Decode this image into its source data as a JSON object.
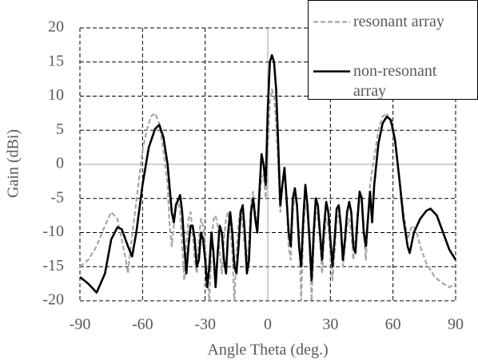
{
  "chart_data": {
    "type": "line",
    "xlabel": "Angle Theta (deg.)",
    "ylabel": "Gain (dBi)",
    "xlim": [
      -90,
      90
    ],
    "xticks": [
      -90,
      -60,
      -30,
      0,
      30,
      60,
      90
    ],
    "ylim": [
      -20,
      20
    ],
    "yticks": [
      -20,
      -15,
      -10,
      -5,
      0,
      5,
      10,
      15,
      20
    ],
    "grid": true,
    "legend": "upper right",
    "series": [
      {
        "name": "resonant array",
        "color": "#a6a6a6",
        "dashed": true,
        "x": [
          -90,
          -86,
          -82,
          -78,
          -75,
          -72,
          -70,
          -68,
          -67,
          -66,
          -64,
          -62,
          -60,
          -58,
          -56,
          -54,
          -52,
          -50,
          -48,
          -47,
          -46,
          -45,
          -44,
          -43,
          -42,
          -41,
          -40,
          -39,
          -38,
          -37,
          -36,
          -35,
          -34,
          -33,
          -32,
          -31,
          -30,
          -29,
          -28,
          -27,
          -26,
          -25,
          -24,
          -23,
          -22,
          -21,
          -20,
          -19,
          -18,
          -17,
          -16,
          -15,
          -14,
          -13,
          -12,
          -11,
          -10,
          -9,
          -8,
          -7,
          -6,
          -5,
          -4,
          -3,
          -2,
          -1,
          0,
          1,
          2,
          3,
          4,
          5,
          6,
          7,
          8,
          9,
          10,
          11,
          12,
          13,
          14,
          15,
          16,
          17,
          18,
          19,
          20,
          21,
          22,
          23,
          24,
          25,
          26,
          27,
          28,
          29,
          30,
          31,
          32,
          33,
          34,
          35,
          36,
          37,
          38,
          39,
          40,
          41,
          42,
          43,
          44,
          45,
          46,
          47,
          48,
          49,
          51,
          53,
          55,
          57,
          59,
          61,
          63,
          65,
          67,
          69,
          71,
          73,
          76,
          80,
          84,
          87,
          90
        ],
        "values": [
          -15,
          -14,
          -12,
          -9,
          -7,
          -8,
          -11,
          -14,
          -16,
          -13,
          -8,
          -3,
          2,
          5,
          7,
          7.5,
          6,
          2,
          -3,
          -9,
          -12,
          -9,
          -5.5,
          -5,
          -7,
          -12,
          -17,
          -12,
          -8,
          -7,
          -10,
          -14,
          -16,
          -11,
          -8,
          -9,
          -12,
          -16,
          -20,
          -12,
          -8,
          -7.5,
          -9,
          -13,
          -16,
          -11,
          -8,
          -7,
          -9,
          -13,
          -20,
          -13,
          -8.5,
          -6.5,
          -9,
          -12,
          -16,
          -11,
          -5.5,
          -4,
          -7,
          -9,
          -5,
          -2,
          -1.5,
          -5,
          2,
          9,
          11,
          10,
          6,
          0,
          -7,
          -3,
          -1.5,
          -5,
          -12,
          -14,
          -7,
          -4.5,
          -6,
          -10,
          -20,
          -10,
          -6,
          -7,
          -12,
          -20,
          -12,
          -7,
          -7.5,
          -11,
          -16,
          -11,
          -8,
          -9,
          -13,
          -17,
          -13,
          -8,
          -7.5,
          -10,
          -15,
          -12,
          -9,
          -8,
          -10,
          -14,
          -11,
          -7,
          -4,
          -4.5,
          -10,
          -14,
          -8,
          -3,
          1,
          5,
          7,
          7.5,
          6,
          3,
          -2,
          -7,
          -11,
          -9,
          -9.5,
          -12,
          -14.5,
          -16.5,
          -17.5,
          -18,
          -17.5
        ]
      },
      {
        "name": "non-resonant array",
        "color": "#000000",
        "dashed": false,
        "x": [
          -90,
          -86,
          -82,
          -78,
          -75,
          -72,
          -70,
          -67,
          -65,
          -63,
          -60,
          -57,
          -54,
          -52,
          -50,
          -48,
          -46,
          -45,
          -44,
          -42,
          -41,
          -40,
          -39,
          -38,
          -37,
          -36,
          -35,
          -34,
          -33,
          -32,
          -31,
          -30,
          -29,
          -28,
          -27,
          -26,
          -25,
          -24,
          -23,
          -22,
          -21,
          -20,
          -19,
          -18,
          -17,
          -16,
          -15,
          -14,
          -13,
          -12,
          -11,
          -10,
          -9,
          -8,
          -7,
          -6,
          -5,
          -4,
          -3,
          -2,
          -1,
          0,
          1,
          2,
          3,
          4,
          5,
          6,
          7,
          8,
          9,
          10,
          11,
          12,
          13,
          14,
          15,
          16,
          17,
          18,
          19,
          20,
          21,
          22,
          23,
          24,
          25,
          26,
          27,
          28,
          29,
          30,
          31,
          32,
          33,
          34,
          35,
          36,
          37,
          38,
          39,
          40,
          41,
          42,
          43,
          44,
          45,
          46,
          47,
          48,
          49,
          50,
          51,
          53,
          55,
          57,
          59,
          61,
          63,
          65,
          67,
          68,
          70,
          73,
          76,
          78,
          81,
          84,
          87,
          90
        ],
        "values": [
          -16.5,
          -17.5,
          -18.8,
          -16,
          -11,
          -9.2,
          -9.5,
          -12,
          -13.5,
          -10,
          -3,
          2.5,
          5.2,
          5.8,
          4,
          0,
          -7,
          -8.5,
          -6,
          -4.5,
          -7,
          -12,
          -16,
          -12,
          -9,
          -9,
          -11,
          -15,
          -14,
          -10,
          -11,
          -14,
          -18,
          -15,
          -10,
          -13,
          -18,
          -13,
          -9,
          -10,
          -14,
          -16,
          -10,
          -7,
          -10,
          -15,
          -16,
          -12,
          -7,
          -6,
          -10,
          -16,
          -14,
          -7,
          -5,
          -8,
          -10,
          -4,
          1.5,
          0,
          -3,
          8,
          15,
          16,
          15,
          11,
          3,
          -6,
          -3,
          -0.5,
          -5,
          -10,
          -12,
          -5,
          -3.5,
          -6,
          -12,
          -15,
          -8,
          -3,
          -6,
          -11,
          -17,
          -10,
          -5,
          -6,
          -10,
          -14,
          -9,
          -5.5,
          -7,
          -11,
          -15,
          -11,
          -6.5,
          -6,
          -9,
          -14,
          -11,
          -7,
          -5.5,
          -7,
          -12,
          -13,
          -8,
          -4,
          -5,
          -10,
          -12,
          -8,
          -4,
          -8.5,
          -3,
          3,
          6,
          7,
          6.5,
          3.5,
          -2,
          -8,
          -12,
          -13,
          -10,
          -8,
          -6.8,
          -6.5,
          -7.5,
          -10,
          -12.5,
          -14
        ]
      }
    ]
  }
}
